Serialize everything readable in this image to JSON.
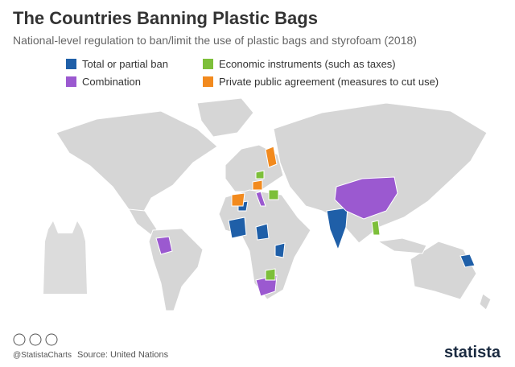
{
  "header": {
    "title": "The Countries Banning Plastic Bags",
    "subtitle": "National-level regulation to ban/limit the use of plastic bags and styrofoam (2018)"
  },
  "legend": [
    {
      "label": "Total or partial ban",
      "color": "#1f5fa8"
    },
    {
      "label": "Economic instruments (such as taxes)",
      "color": "#7dbf3a"
    },
    {
      "label": "Combination",
      "color": "#9b59d0"
    },
    {
      "label": "Private public agreement (measures to cut use)",
      "color": "#f28a1e"
    }
  ],
  "footer": {
    "handle": "@StatistaCharts",
    "source": "Source: United Nations",
    "brand": "statista"
  }
}
